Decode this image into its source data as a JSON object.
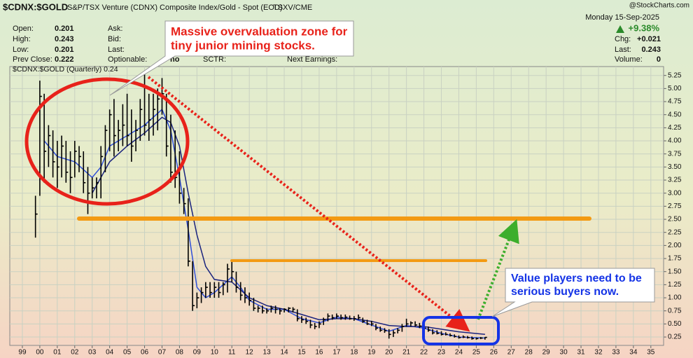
{
  "header": {
    "symbol": "$CDNX:$GOLD",
    "description": "S&P/TSX Venture (CDNX) Composite Index/Gold - Spot (EOD)",
    "exchange": "TSXV/CME",
    "watermark": "@StockCharts.com",
    "date": "Monday  15-Sep-2025",
    "change_pct": "+9.38%"
  },
  "quote_left": [
    {
      "label": "Open:",
      "value": "0.201"
    },
    {
      "label": "High:",
      "value": "0.243"
    },
    {
      "label": "Low:",
      "value": "0.201"
    },
    {
      "label": "Prev Close:",
      "value": "0.222"
    }
  ],
  "quote_mid": [
    {
      "label": "Ask:"
    },
    {
      "label": "Bid:"
    },
    {
      "label": "Last:"
    },
    {
      "label": "Optionable:",
      "value": "no"
    }
  ],
  "quote_extra": [
    "SCTR:",
    "Next Earnings:"
  ],
  "quote_right": [
    {
      "label": "Chg:",
      "value": "+0.021"
    },
    {
      "label": "Last:",
      "value": "0.243"
    },
    {
      "label": "Volume:",
      "value": "0"
    }
  ],
  "chart_data": {
    "type": "ohlc",
    "legend": "$CDNX:$GOLD (Quarterly) 0.24",
    "color": "#000000",
    "grid": true,
    "x": [
      1999.75,
      2000,
      2000.25,
      2000.5,
      2000.75,
      2001,
      2001.25,
      2001.5,
      2001.75,
      2002,
      2002.25,
      2002.5,
      2002.75,
      2003,
      2003.25,
      2003.5,
      2003.75,
      2004,
      2004.25,
      2004.5,
      2004.75,
      2005,
      2005.25,
      2005.5,
      2005.75,
      2006,
      2006.25,
      2006.5,
      2006.75,
      2007,
      2007.25,
      2007.5,
      2007.75,
      2008,
      2008.25,
      2008.5,
      2008.75,
      2009,
      2009.25,
      2009.5,
      2009.75,
      2010,
      2010.25,
      2010.5,
      2010.75,
      2011,
      2011.25,
      2011.5,
      2011.75,
      2012,
      2012.25,
      2012.5,
      2012.75,
      2013,
      2013.25,
      2013.5,
      2013.75,
      2014,
      2014.25,
      2014.5,
      2014.75,
      2015,
      2015.25,
      2015.5,
      2015.75,
      2016,
      2016.25,
      2016.5,
      2016.75,
      2017,
      2017.25,
      2017.5,
      2017.75,
      2018,
      2018.25,
      2018.5,
      2018.75,
      2019,
      2019.25,
      2019.5,
      2019.75,
      2020,
      2020.25,
      2020.5,
      2020.75,
      2021,
      2021.25,
      2021.5,
      2021.75,
      2022,
      2022.25,
      2022.5,
      2022.75,
      2023,
      2023.25,
      2023.5,
      2023.75,
      2024,
      2024.25,
      2024.5,
      2024.75,
      2025,
      2025.25,
      2025.5
    ],
    "high": [
      2.95,
      5.15,
      4.9,
      4.3,
      4.2,
      4.0,
      4.1,
      4.0,
      3.8,
      4.0,
      3.9,
      3.8,
      3.5,
      3.3,
      3.3,
      3.9,
      4.3,
      4.6,
      4.8,
      4.4,
      4.7,
      4.9,
      4.6,
      4.4,
      4.8,
      5.3,
      4.9,
      4.9,
      5.0,
      5.2,
      4.9,
      4.5,
      4.2,
      3.8,
      3.1,
      2.9,
      1.7,
      1.1,
      1.2,
      1.3,
      1.3,
      1.3,
      1.3,
      1.3,
      1.65,
      1.7,
      1.5,
      1.3,
      1.2,
      1.1,
      1.0,
      0.85,
      0.85,
      0.8,
      0.85,
      0.85,
      0.8,
      0.8,
      0.82,
      0.82,
      0.78,
      0.65,
      0.62,
      0.58,
      0.52,
      0.55,
      0.62,
      0.7,
      0.68,
      0.7,
      0.68,
      0.68,
      0.66,
      0.65,
      0.68,
      0.62,
      0.58,
      0.56,
      0.5,
      0.45,
      0.42,
      0.4,
      0.38,
      0.42,
      0.5,
      0.6,
      0.55,
      0.55,
      0.52,
      0.5,
      0.45,
      0.4,
      0.38,
      0.36,
      0.34,
      0.32,
      0.3,
      0.28,
      0.28,
      0.27,
      0.26,
      0.24,
      0.25,
      0.25
    ],
    "low": [
      2.15,
      2.95,
      3.2,
      3.5,
      3.3,
      3.1,
      3.3,
      3.2,
      3.0,
      3.3,
      3.4,
      3.0,
      2.6,
      2.9,
      2.9,
      2.9,
      3.4,
      3.8,
      3.7,
      3.8,
      3.9,
      3.9,
      3.6,
      3.8,
      4.0,
      4.1,
      4.0,
      4.1,
      4.2,
      4.5,
      3.7,
      3.2,
      3.1,
      2.8,
      2.6,
      1.6,
      0.75,
      0.8,
      0.9,
      1.0,
      1.0,
      1.0,
      1.0,
      1.05,
      1.1,
      1.3,
      1.1,
      0.95,
      0.9,
      0.85,
      0.75,
      0.72,
      0.7,
      0.7,
      0.72,
      0.7,
      0.68,
      0.72,
      0.72,
      0.72,
      0.55,
      0.52,
      0.5,
      0.42,
      0.4,
      0.42,
      0.48,
      0.55,
      0.58,
      0.6,
      0.58,
      0.58,
      0.58,
      0.56,
      0.58,
      0.52,
      0.48,
      0.46,
      0.38,
      0.35,
      0.33,
      0.22,
      0.25,
      0.32,
      0.35,
      0.45,
      0.45,
      0.45,
      0.42,
      0.38,
      0.35,
      0.3,
      0.3,
      0.28,
      0.28,
      0.26,
      0.24,
      0.22,
      0.23,
      0.22,
      0.2,
      0.2,
      0.21,
      0.2
    ],
    "close": [
      2.6,
      4.85,
      3.8,
      4.1,
      3.6,
      3.5,
      3.9,
      3.4,
      3.3,
      3.8,
      3.7,
      3.2,
      3.0,
      3.1,
      3.2,
      3.7,
      4.2,
      4.5,
      4.1,
      4.2,
      4.3,
      4.1,
      3.9,
      4.2,
      4.6,
      4.3,
      4.4,
      4.6,
      4.8,
      4.9,
      3.9,
      3.4,
      3.3,
      3.0,
      2.8,
      1.7,
      0.85,
      1.0,
      1.1,
      1.2,
      1.1,
      1.2,
      1.1,
      1.25,
      1.55,
      1.5,
      1.2,
      1.05,
      1.0,
      0.95,
      0.8,
      0.8,
      0.75,
      0.75,
      0.8,
      0.78,
      0.75,
      0.78,
      0.8,
      0.78,
      0.6,
      0.58,
      0.55,
      0.48,
      0.45,
      0.5,
      0.58,
      0.65,
      0.62,
      0.65,
      0.62,
      0.63,
      0.6,
      0.6,
      0.62,
      0.55,
      0.5,
      0.5,
      0.42,
      0.38,
      0.37,
      0.3,
      0.33,
      0.38,
      0.45,
      0.5,
      0.52,
      0.48,
      0.46,
      0.42,
      0.38,
      0.33,
      0.32,
      0.3,
      0.3,
      0.28,
      0.26,
      0.24,
      0.25,
      0.24,
      0.22,
      0.22,
      0.23,
      0.243
    ],
    "moving_averages": [
      {
        "color": "#2f4fd8",
        "x": [
          2000.25,
          2001,
          2002,
          2003,
          2003.5,
          2004,
          2005,
          2006,
          2007,
          2007.5,
          2008,
          2008.5,
          2009,
          2009.5,
          2010,
          2011,
          2011.5,
          2012,
          2013,
          2014,
          2015,
          2016,
          2017,
          2018,
          2019,
          2020,
          2021,
          2022,
          2023,
          2024,
          2025.5
        ],
        "values": [
          4.0,
          3.7,
          3.6,
          3.3,
          3.5,
          3.9,
          4.1,
          4.3,
          4.6,
          4.2,
          3.3,
          2.3,
          1.2,
          1.0,
          1.1,
          1.4,
          1.2,
          0.95,
          0.78,
          0.78,
          0.6,
          0.52,
          0.63,
          0.6,
          0.48,
          0.36,
          0.47,
          0.42,
          0.32,
          0.25,
          0.23
        ]
      },
      {
        "color": "#1a237e",
        "x": [
          2003,
          2004,
          2005,
          2006,
          2007,
          2007.5,
          2008,
          2008.5,
          2009,
          2009.5,
          2010,
          2011,
          2012,
          2013,
          2014,
          2015,
          2016,
          2017,
          2018,
          2019,
          2020,
          2021,
          2022,
          2023,
          2024,
          2025.5
        ],
        "values": [
          3.0,
          3.6,
          3.9,
          4.15,
          4.45,
          4.35,
          3.9,
          3.0,
          2.2,
          1.6,
          1.35,
          1.3,
          1.0,
          0.85,
          0.78,
          0.68,
          0.58,
          0.6,
          0.6,
          0.55,
          0.47,
          0.45,
          0.45,
          0.4,
          0.35,
          0.3
        ]
      }
    ],
    "xlim": [
      1998.28,
      2035.73
    ],
    "ylim": [
      0.09,
      5.42
    ],
    "xticks": [
      {
        "value": 1999,
        "label": "99"
      },
      {
        "value": 2000,
        "label": "00"
      },
      {
        "value": 2001,
        "label": "01"
      },
      {
        "value": 2002,
        "label": "02"
      },
      {
        "value": 2003,
        "label": "03"
      },
      {
        "value": 2004,
        "label": "04"
      },
      {
        "value": 2005,
        "label": "05"
      },
      {
        "value": 2006,
        "label": "06"
      },
      {
        "value": 2007,
        "label": "07"
      },
      {
        "value": 2008,
        "label": "08"
      },
      {
        "value": 2009,
        "label": "09"
      },
      {
        "value": 2010,
        "label": "10"
      },
      {
        "value": 2011,
        "label": "11"
      },
      {
        "value": 2012,
        "label": "12"
      },
      {
        "value": 2013,
        "label": "13"
      },
      {
        "value": 2014,
        "label": "14"
      },
      {
        "value": 2015,
        "label": "15"
      },
      {
        "value": 2016,
        "label": "16"
      },
      {
        "value": 2017,
        "label": "17"
      },
      {
        "value": 2018,
        "label": "18"
      },
      {
        "value": 2019,
        "label": "19"
      },
      {
        "value": 2020,
        "label": "20"
      },
      {
        "value": 2021,
        "label": "21"
      },
      {
        "value": 2022,
        "label": "22"
      },
      {
        "value": 2023,
        "label": "23"
      },
      {
        "value": 2024,
        "label": "24"
      },
      {
        "value": 2025,
        "label": "25"
      },
      {
        "value": 2026,
        "label": "26"
      },
      {
        "value": 2027,
        "label": "27"
      },
      {
        "value": 2028,
        "label": "28"
      },
      {
        "value": 2029,
        "label": "29"
      },
      {
        "value": 2030,
        "label": "30"
      },
      {
        "value": 2031,
        "label": "31"
      },
      {
        "value": 2032,
        "label": "32"
      },
      {
        "value": 2033,
        "label": "33"
      },
      {
        "value": 2034,
        "label": "34"
      },
      {
        "value": 2035,
        "label": "35"
      }
    ],
    "yticks": [
      0.25,
      {
        "value": 0.5,
        "label": "0.50"
      },
      0.75,
      {
        "value": 1,
        "label": "1.00"
      },
      1.25,
      {
        "value": 1.5,
        "label": "1.50"
      },
      1.75,
      {
        "value": 2,
        "label": "2.00"
      },
      2.25,
      {
        "value": 2.5,
        "label": "2.50"
      },
      2.75,
      {
        "value": 3,
        "label": "3.00"
      },
      3.25,
      {
        "value": 3.5,
        "label": "3.50"
      },
      3.75,
      {
        "value": 4,
        "label": "4.00"
      },
      4.25,
      {
        "value": 4.5,
        "label": "4.50"
      },
      4.75,
      {
        "value": 5,
        "label": "5.00"
      },
      5.25
    ],
    "annotations": [
      {
        "lines": [
          "Massive overvaluation zone for",
          "tiny junior mining stocks."
        ]
      },
      {
        "lines": [
          "Value players  need to be",
          "serious buyers now."
        ]
      }
    ]
  }
}
